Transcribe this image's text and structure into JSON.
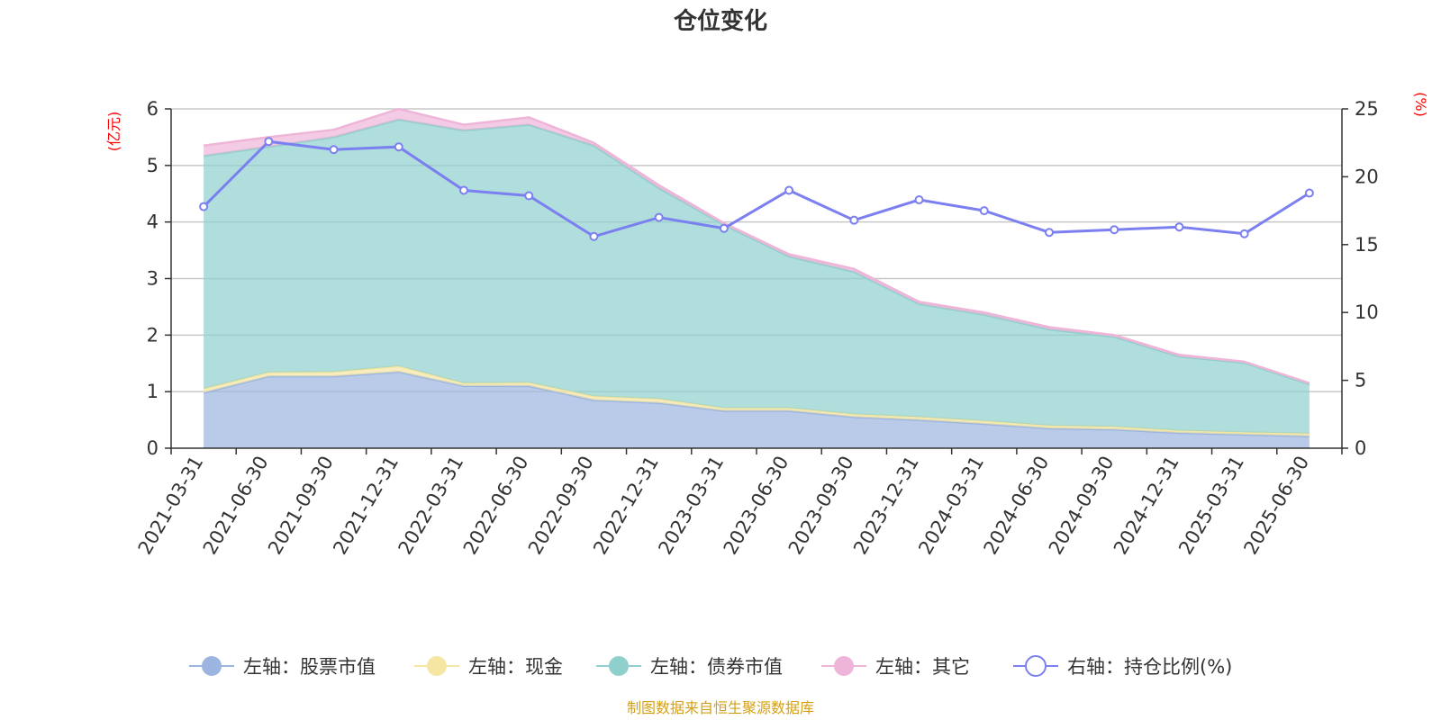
{
  "chart_data": {
    "type": "area",
    "title": "仓位变化",
    "x": [
      "2021-03-31",
      "2021-06-30",
      "2021-09-30",
      "2021-12-31",
      "2022-03-31",
      "2022-06-30",
      "2022-09-30",
      "2022-12-31",
      "2023-03-31",
      "2023-06-30",
      "2023-09-30",
      "2023-12-31",
      "2024-03-31",
      "2024-06-30",
      "2024-09-30",
      "2024-12-31",
      "2025-03-31",
      "2025-06-30"
    ],
    "left_axis": {
      "unit": "(亿元)",
      "ylim": [
        0,
        6
      ],
      "ticks": [
        0,
        1,
        2,
        3,
        4,
        5,
        6
      ]
    },
    "right_axis": {
      "unit": "(%)",
      "ylim": [
        0,
        25
      ],
      "ticks": [
        0,
        5,
        10,
        15,
        20,
        25
      ]
    },
    "grid": true,
    "legend_position": "bottom",
    "series": [
      {
        "name": "左轴：股票市值",
        "axis": "left",
        "kind": "stacked-area",
        "color": "#9bb5e0",
        "values": [
          0.98,
          1.27,
          1.27,
          1.35,
          1.1,
          1.1,
          0.85,
          0.8,
          0.66,
          0.66,
          0.55,
          0.5,
          0.43,
          0.35,
          0.33,
          0.27,
          0.24,
          0.21
        ]
      },
      {
        "name": "左轴：现金",
        "axis": "left",
        "kind": "stacked-area",
        "color": "#f5e6a3",
        "values": [
          0.07,
          0.07,
          0.08,
          0.1,
          0.05,
          0.06,
          0.07,
          0.07,
          0.05,
          0.05,
          0.05,
          0.05,
          0.05,
          0.05,
          0.05,
          0.04,
          0.04,
          0.05
        ]
      },
      {
        "name": "左轴：债券市值",
        "axis": "left",
        "kind": "stacked-area",
        "color": "#8fd0cd",
        "values": [
          4.12,
          3.99,
          4.15,
          4.36,
          4.47,
          4.56,
          4.43,
          3.73,
          3.24,
          2.68,
          2.52,
          2.0,
          1.88,
          1.7,
          1.59,
          1.31,
          1.23,
          0.87
        ]
      },
      {
        "name": "左轴：其它",
        "axis": "left",
        "kind": "stacked-area",
        "color": "#eeb5d8",
        "values": [
          0.18,
          0.17,
          0.13,
          0.19,
          0.1,
          0.13,
          0.05,
          0.05,
          0.03,
          0.04,
          0.05,
          0.04,
          0.04,
          0.04,
          0.03,
          0.03,
          0.02,
          0.02
        ]
      },
      {
        "name": "右轴：持仓比例(%)",
        "axis": "right",
        "kind": "line",
        "color": "#7b7ff0",
        "values": [
          17.8,
          22.6,
          22.0,
          22.2,
          19.0,
          18.6,
          15.6,
          17.0,
          16.2,
          19.0,
          16.8,
          18.3,
          17.5,
          15.9,
          16.1,
          16.3,
          15.8,
          18.8
        ]
      }
    ],
    "footer": "制图数据来自恒生聚源数据库"
  }
}
